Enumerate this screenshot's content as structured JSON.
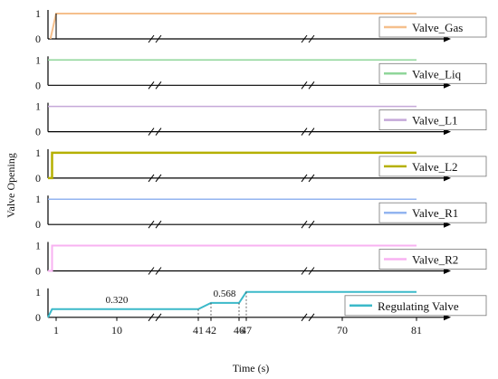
{
  "chart_data": {
    "type": "line",
    "ylabel": "Valve Opening",
    "xlabel": "Time (s)",
    "ylim": [
      0,
      1
    ],
    "y_ticks": [
      "0",
      "1"
    ],
    "x_ticks": [
      "1",
      "10",
      "41",
      "42",
      "46",
      "47",
      "70",
      "81"
    ],
    "axis_break": true,
    "legend_position": "right",
    "panels": [
      {
        "name": "Valve_Gas",
        "color": "#f5bf8c",
        "stroke": 2,
        "x": [
          "0.3",
          "1",
          "81"
        ],
        "y": [
          0,
          1,
          1
        ],
        "start_dash": true
      },
      {
        "name": "Valve_Liq",
        "color": "#8fd69a",
        "stroke": 1.5,
        "x": [
          "0",
          "81"
        ],
        "y": [
          1,
          1
        ]
      },
      {
        "name": "Valve_L1",
        "color": "#c5a8d9",
        "stroke": 1.5,
        "x": [
          "0",
          "81"
        ],
        "y": [
          1,
          1
        ]
      },
      {
        "name": "Valve_L2",
        "color": "#b5b000",
        "stroke": 2.5,
        "x": [
          "0",
          "0.5",
          "0.5",
          "81"
        ],
        "y": [
          0,
          0,
          1,
          1
        ]
      },
      {
        "name": "Valve_R1",
        "color": "#93b4f0",
        "stroke": 1.5,
        "x": [
          "0",
          "81"
        ],
        "y": [
          1,
          1
        ]
      },
      {
        "name": "Valve_R2",
        "color": "#f8b2f2",
        "stroke": 2,
        "x": [
          "0",
          "0.5",
          "0.5",
          "81"
        ],
        "y": [
          0,
          0,
          1,
          1
        ]
      },
      {
        "name": "Regulating Valve",
        "color": "#3bb9c9",
        "stroke": 2,
        "x": [
          "0",
          "0.5",
          "41",
          "42",
          "46",
          "47",
          "81"
        ],
        "y": [
          0,
          0.32,
          0.32,
          0.568,
          0.568,
          1,
          1
        ]
      }
    ],
    "annotations": [
      {
        "text": "0.320",
        "x": "10",
        "y": 0.32
      },
      {
        "text": "0.568",
        "x": "42",
        "y": 0.568
      }
    ]
  }
}
